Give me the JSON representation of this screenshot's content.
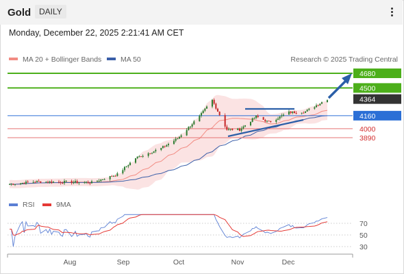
{
  "header": {
    "title": "Gold",
    "timeframe": "DAILY"
  },
  "datetime": "Monday, December 22, 2025 2:21:41 AM CET",
  "legend": [
    {
      "label": "MA 20 + Bollinger Bands",
      "color": "#f28b82"
    },
    {
      "label": "MA 50",
      "color": "#3a5ea8"
    }
  ],
  "copyright": "Research © 2025 Trading Central",
  "colors": {
    "up": "#2e7d32",
    "down": "#c62828",
    "resistance": "#4caf1a",
    "support": "#e57373",
    "pivot": "#2b6fd6",
    "current": "#333333",
    "band": "#fbe3e3",
    "ma50": "#3a5ea8",
    "ma20": "#f28b82",
    "rsi": "#5b7fd4",
    "rsi_ma": "#e53935",
    "arrow": "#2b5fa8"
  },
  "levels": [
    {
      "label": "4680",
      "value": 4680,
      "type": "resistance"
    },
    {
      "label": "4500",
      "value": 4500,
      "type": "resistance"
    },
    {
      "label": "4364",
      "value": 4364,
      "type": "current"
    },
    {
      "label": "4160",
      "value": 4160,
      "type": "pivot"
    },
    {
      "label": "4000",
      "value": 4000,
      "type": "support"
    },
    {
      "label": "3890",
      "value": 3890,
      "type": "support"
    }
  ],
  "x_labels": [
    "Aug",
    "Sep",
    "Oct",
    "Nov",
    "Dec"
  ],
  "rsi_legend": [
    {
      "label": "RSI",
      "color": "#5b7fd4"
    },
    {
      "label": "9MA",
      "color": "#e53935"
    }
  ],
  "rsi_ticks": [
    "70",
    "50",
    "30"
  ],
  "chart_data": {
    "type": "candlestick",
    "price_range": [
      2900,
      4800
    ],
    "x_range": [
      "2025-07-01",
      "2025-12-22"
    ],
    "x_labels": [
      "Aug",
      "Sep",
      "Oct",
      "Nov",
      "Dec"
    ],
    "close_points": [
      [
        "2025-07-01",
        3320
      ],
      [
        "2025-07-15",
        3350
      ],
      [
        "2025-08-01",
        3345
      ],
      [
        "2025-08-15",
        3340
      ],
      [
        "2025-08-29",
        3440
      ],
      [
        "2025-09-08",
        3640
      ],
      [
        "2025-09-22",
        3760
      ],
      [
        "2025-10-01",
        3880
      ],
      [
        "2025-10-13",
        4150
      ],
      [
        "2025-10-20",
        4350
      ],
      [
        "2025-10-28",
        3990
      ],
      [
        "2025-11-04",
        3990
      ],
      [
        "2025-11-13",
        4150
      ],
      [
        "2025-11-20",
        4080
      ],
      [
        "2025-12-01",
        4200
      ],
      [
        "2025-12-10",
        4210
      ],
      [
        "2025-12-22",
        4364
      ]
    ],
    "levels": [
      4680,
      4500,
      4364,
      4160,
      4000,
      3890
    ],
    "rsi": {
      "range": [
        0,
        100
      ],
      "ticks": [
        70,
        50,
        30
      ]
    }
  }
}
